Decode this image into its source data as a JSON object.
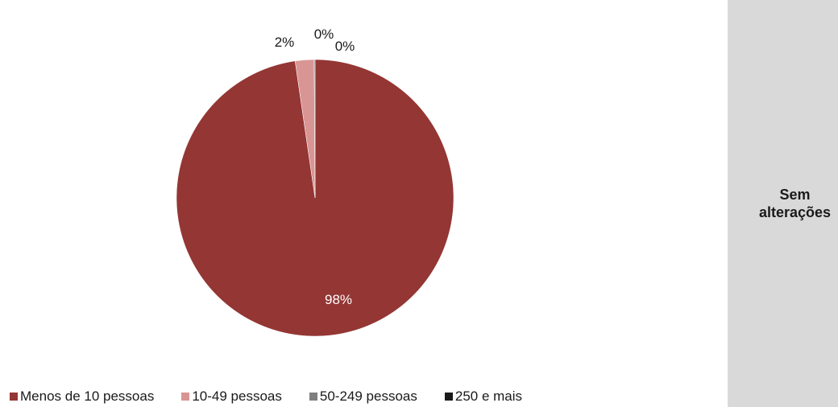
{
  "chart_data": {
    "type": "pie",
    "title": "",
    "categories": [
      "Menos de 10 pessoas",
      "10-49 pessoas",
      "50-249 pessoas",
      "250 e mais"
    ],
    "values": [
      97.7,
      2.2,
      0.1,
      0.0
    ],
    "data_labels": [
      "98%",
      "2%",
      "0%",
      "0%"
    ],
    "colors": [
      "#943634",
      "#d99594",
      "#7f7f7f",
      "#1a1a1a"
    ],
    "legend_position": "bottom"
  },
  "side_panel": {
    "text": "Sem alterações",
    "background": "#d9d9d9"
  }
}
